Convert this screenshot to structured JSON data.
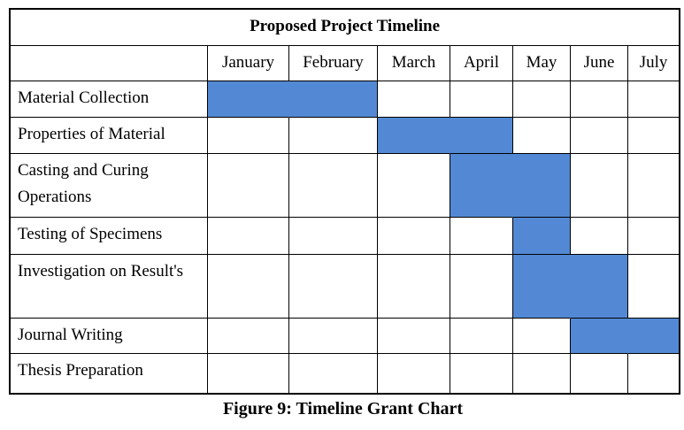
{
  "chart_data": {
    "type": "gantt",
    "title": "Proposed Project Timeline",
    "caption": "Figure 9: Timeline Grant Chart",
    "x_categories": [
      "January",
      "February",
      "March",
      "April",
      "May",
      "June",
      "July"
    ],
    "tasks": [
      {
        "name": "Material Collection",
        "start_month": "January",
        "end_month": "February"
      },
      {
        "name": "Properties of Material",
        "start_month": "March",
        "end_month": "April"
      },
      {
        "name": "Casting and Curing Operations",
        "start_month": "April",
        "end_month": "May"
      },
      {
        "name": "Testing of Specimens",
        "start_month": "May",
        "end_month": "May"
      },
      {
        "name": "Investigation on Result's",
        "start_month": "May",
        "end_month": "June"
      },
      {
        "name": "Journal Writing",
        "start_month": "June",
        "end_month": "July"
      },
      {
        "name": "Thesis Preparation",
        "start_month": null,
        "end_month": null
      }
    ],
    "bar_color": "#5389d4",
    "border_color": "#000000",
    "background_color": "#ffffff",
    "legend": "none",
    "grid": "table-borders"
  }
}
